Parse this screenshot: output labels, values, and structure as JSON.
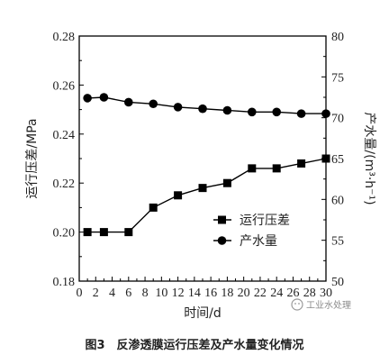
{
  "chart_data": {
    "type": "line",
    "xlabel": "时间/d",
    "ylabel_left": "运行压差/MPa",
    "ylabel_right": "产水量/(m³·h⁻¹)",
    "xlim": [
      0,
      30
    ],
    "ylim_left": [
      0.18,
      0.28
    ],
    "ylim_right": [
      50,
      80
    ],
    "x_ticks": [
      "0",
      "2",
      "4",
      "6",
      "8",
      "10",
      "12",
      "14",
      "16",
      "18",
      "20",
      "22",
      "24",
      "26",
      "28",
      "30"
    ],
    "y_left_ticks": [
      "0.18",
      "0.20",
      "0.22",
      "0.24",
      "0.26",
      "0.28"
    ],
    "y_right_ticks": [
      "50",
      "55",
      "60",
      "65",
      "70",
      "75",
      "80"
    ],
    "grid": false,
    "legend_position": "lower-right",
    "series": [
      {
        "name": "运行压差",
        "axis": "left",
        "marker": "square",
        "x": [
          1,
          3,
          6,
          9,
          12,
          15,
          18,
          21,
          24,
          27,
          30
        ],
        "y": [
          0.2,
          0.2,
          0.2,
          0.21,
          0.215,
          0.218,
          0.22,
          0.226,
          0.226,
          0.228,
          0.23
        ]
      },
      {
        "name": "产水量",
        "axis": "right",
        "marker": "circle",
        "x": [
          1,
          3,
          6,
          9,
          12,
          15,
          18,
          21,
          24,
          27,
          30
        ],
        "y": [
          72.4,
          72.5,
          71.9,
          71.7,
          71.3,
          71.1,
          70.9,
          70.7,
          70.7,
          70.5,
          70.5
        ]
      }
    ]
  },
  "watermark": "工业水处理",
  "caption": "图3　反渗透膜运行压差及产水量变化情况"
}
